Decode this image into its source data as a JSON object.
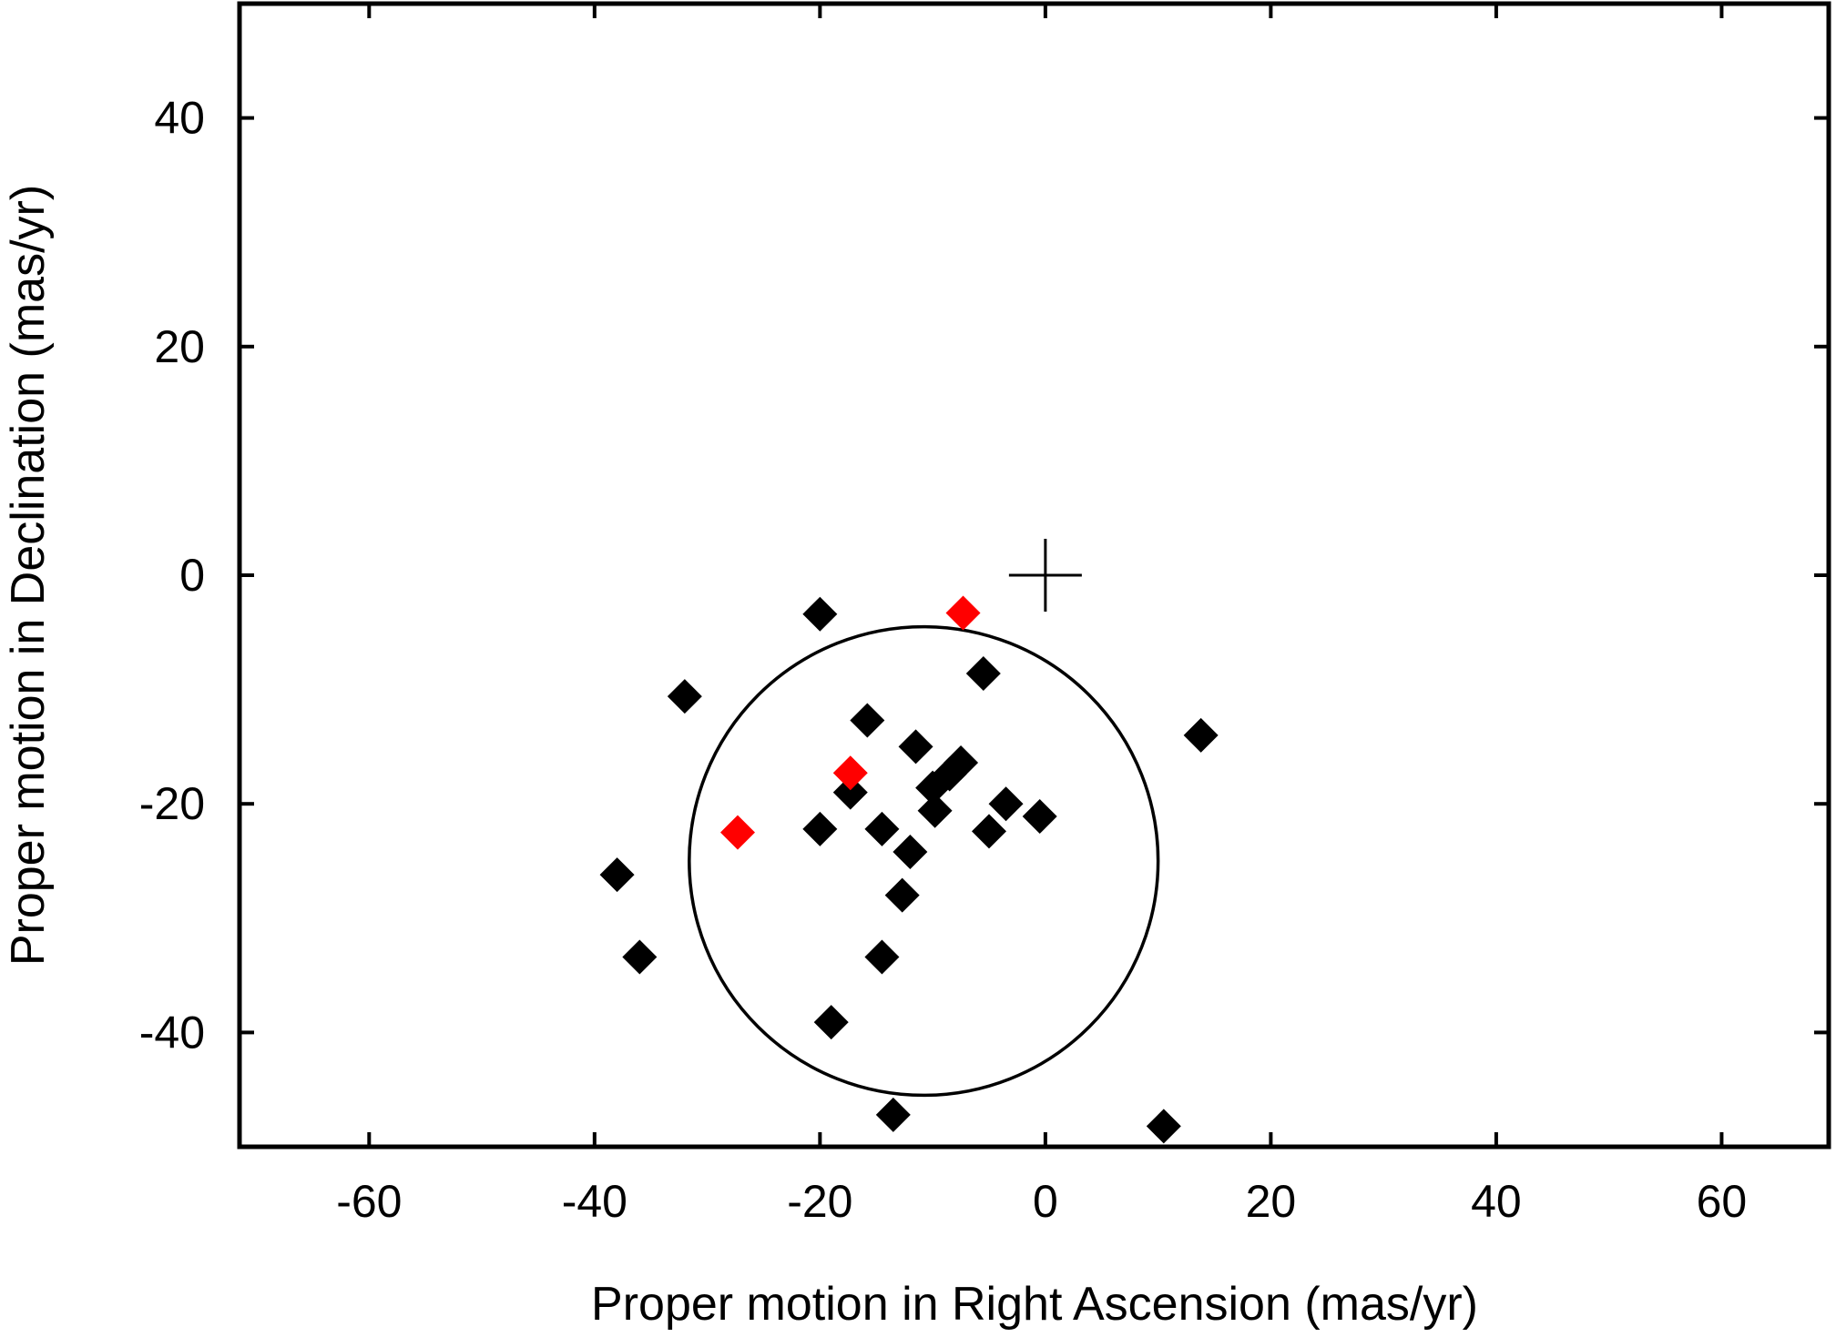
{
  "chart_data": {
    "type": "scatter",
    "title": "",
    "xlabel": "Proper motion in Right Ascension (mas/yr)",
    "ylabel": "Proper motion in Declination (mas/yr)",
    "xlim": [
      -71.5,
      69.5
    ],
    "ylim": [
      -50,
      50
    ],
    "xticks": [
      -60,
      -40,
      -20,
      0,
      20,
      40,
      60
    ],
    "yticks": [
      -40,
      -20,
      0,
      20,
      40
    ],
    "xtick_labels": [
      "-60",
      "-40",
      "-20",
      "0",
      "20",
      "40",
      "60"
    ],
    "ytick_labels": [
      "-40",
      "-20",
      "0",
      "20",
      "40"
    ],
    "grid": false,
    "legend": "none",
    "marker": "diamond",
    "series": [
      {
        "color": "#000000",
        "points": [
          [
            -20.0,
            -3.4
          ],
          [
            -32.0,
            -10.6
          ],
          [
            -5.5,
            -8.6
          ],
          [
            -15.8,
            -12.7
          ],
          [
            -11.5,
            -15.0
          ],
          [
            -7.5,
            -16.4
          ],
          [
            -8.5,
            -17.4
          ],
          [
            -10.0,
            -18.6
          ],
          [
            -17.3,
            -19.0
          ],
          [
            -9.8,
            -20.6
          ],
          [
            -3.5,
            -20.0
          ],
          [
            -0.5,
            -21.1
          ],
          [
            -20.0,
            -22.2
          ],
          [
            -14.5,
            -22.2
          ],
          [
            -5.0,
            -22.4
          ],
          [
            -12.0,
            -24.2
          ],
          [
            -38.0,
            -26.2
          ],
          [
            -12.7,
            -28.0
          ],
          [
            -36.0,
            -33.4
          ],
          [
            -14.5,
            -33.4
          ],
          [
            -19.0,
            -39.1
          ],
          [
            -13.5,
            -47.2
          ],
          [
            10.5,
            -48.2
          ],
          [
            13.8,
            -14.0
          ]
        ]
      },
      {
        "color": "#ff0000",
        "points": [
          [
            -7.3,
            -3.3
          ],
          [
            -17.3,
            -17.3
          ],
          [
            -27.3,
            -22.5
          ]
        ]
      }
    ],
    "reference_point": {
      "x": 0,
      "y": 0,
      "marker": "plus"
    },
    "circle": {
      "cx": -10.8,
      "cy": -25.0,
      "r": 20.8
    }
  }
}
